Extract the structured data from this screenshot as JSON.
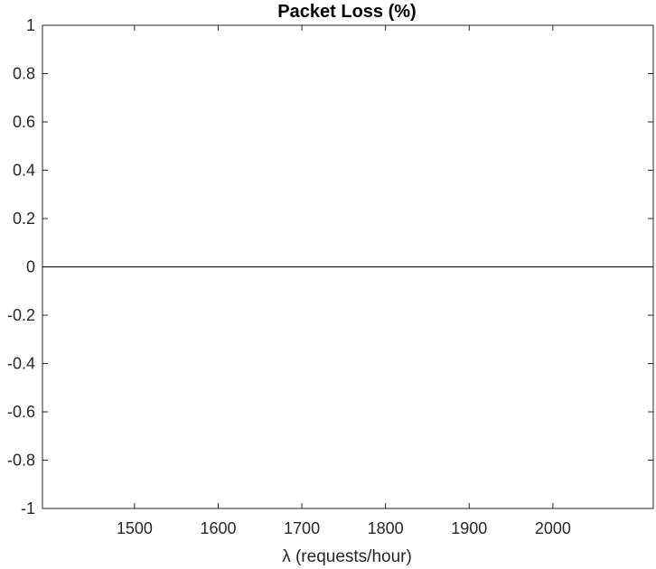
{
  "chart_data": {
    "type": "line",
    "title": "Packet Loss (%)",
    "xlabel": "λ (requests/hour)",
    "ylabel": "",
    "xlim": [
      1390,
      2120
    ],
    "ylim": [
      -1,
      1
    ],
    "xticks": [
      1500,
      1600,
      1700,
      1800,
      1900,
      2000
    ],
    "yticks": [
      1,
      0.8,
      0.6,
      0.4,
      0.2,
      0,
      -0.2,
      -0.4,
      -0.6,
      -0.8,
      -1
    ],
    "xtick_labels": [
      "1500",
      "1600",
      "1700",
      "1800",
      "1900",
      "2000"
    ],
    "ytick_labels": [
      "1",
      "0.8",
      "0.6",
      "0.4",
      "0.2",
      "0",
      "-0.2",
      "-0.4",
      "-0.6",
      "-0.8",
      "-1"
    ],
    "series": [
      {
        "x": [
          1390,
          2120
        ],
        "values": [
          0,
          0
        ],
        "color": "#000000"
      }
    ],
    "grid": false,
    "legend": "none",
    "colors": {
      "axes": "#262626",
      "series": "#000000",
      "background": "#ffffff"
    }
  }
}
